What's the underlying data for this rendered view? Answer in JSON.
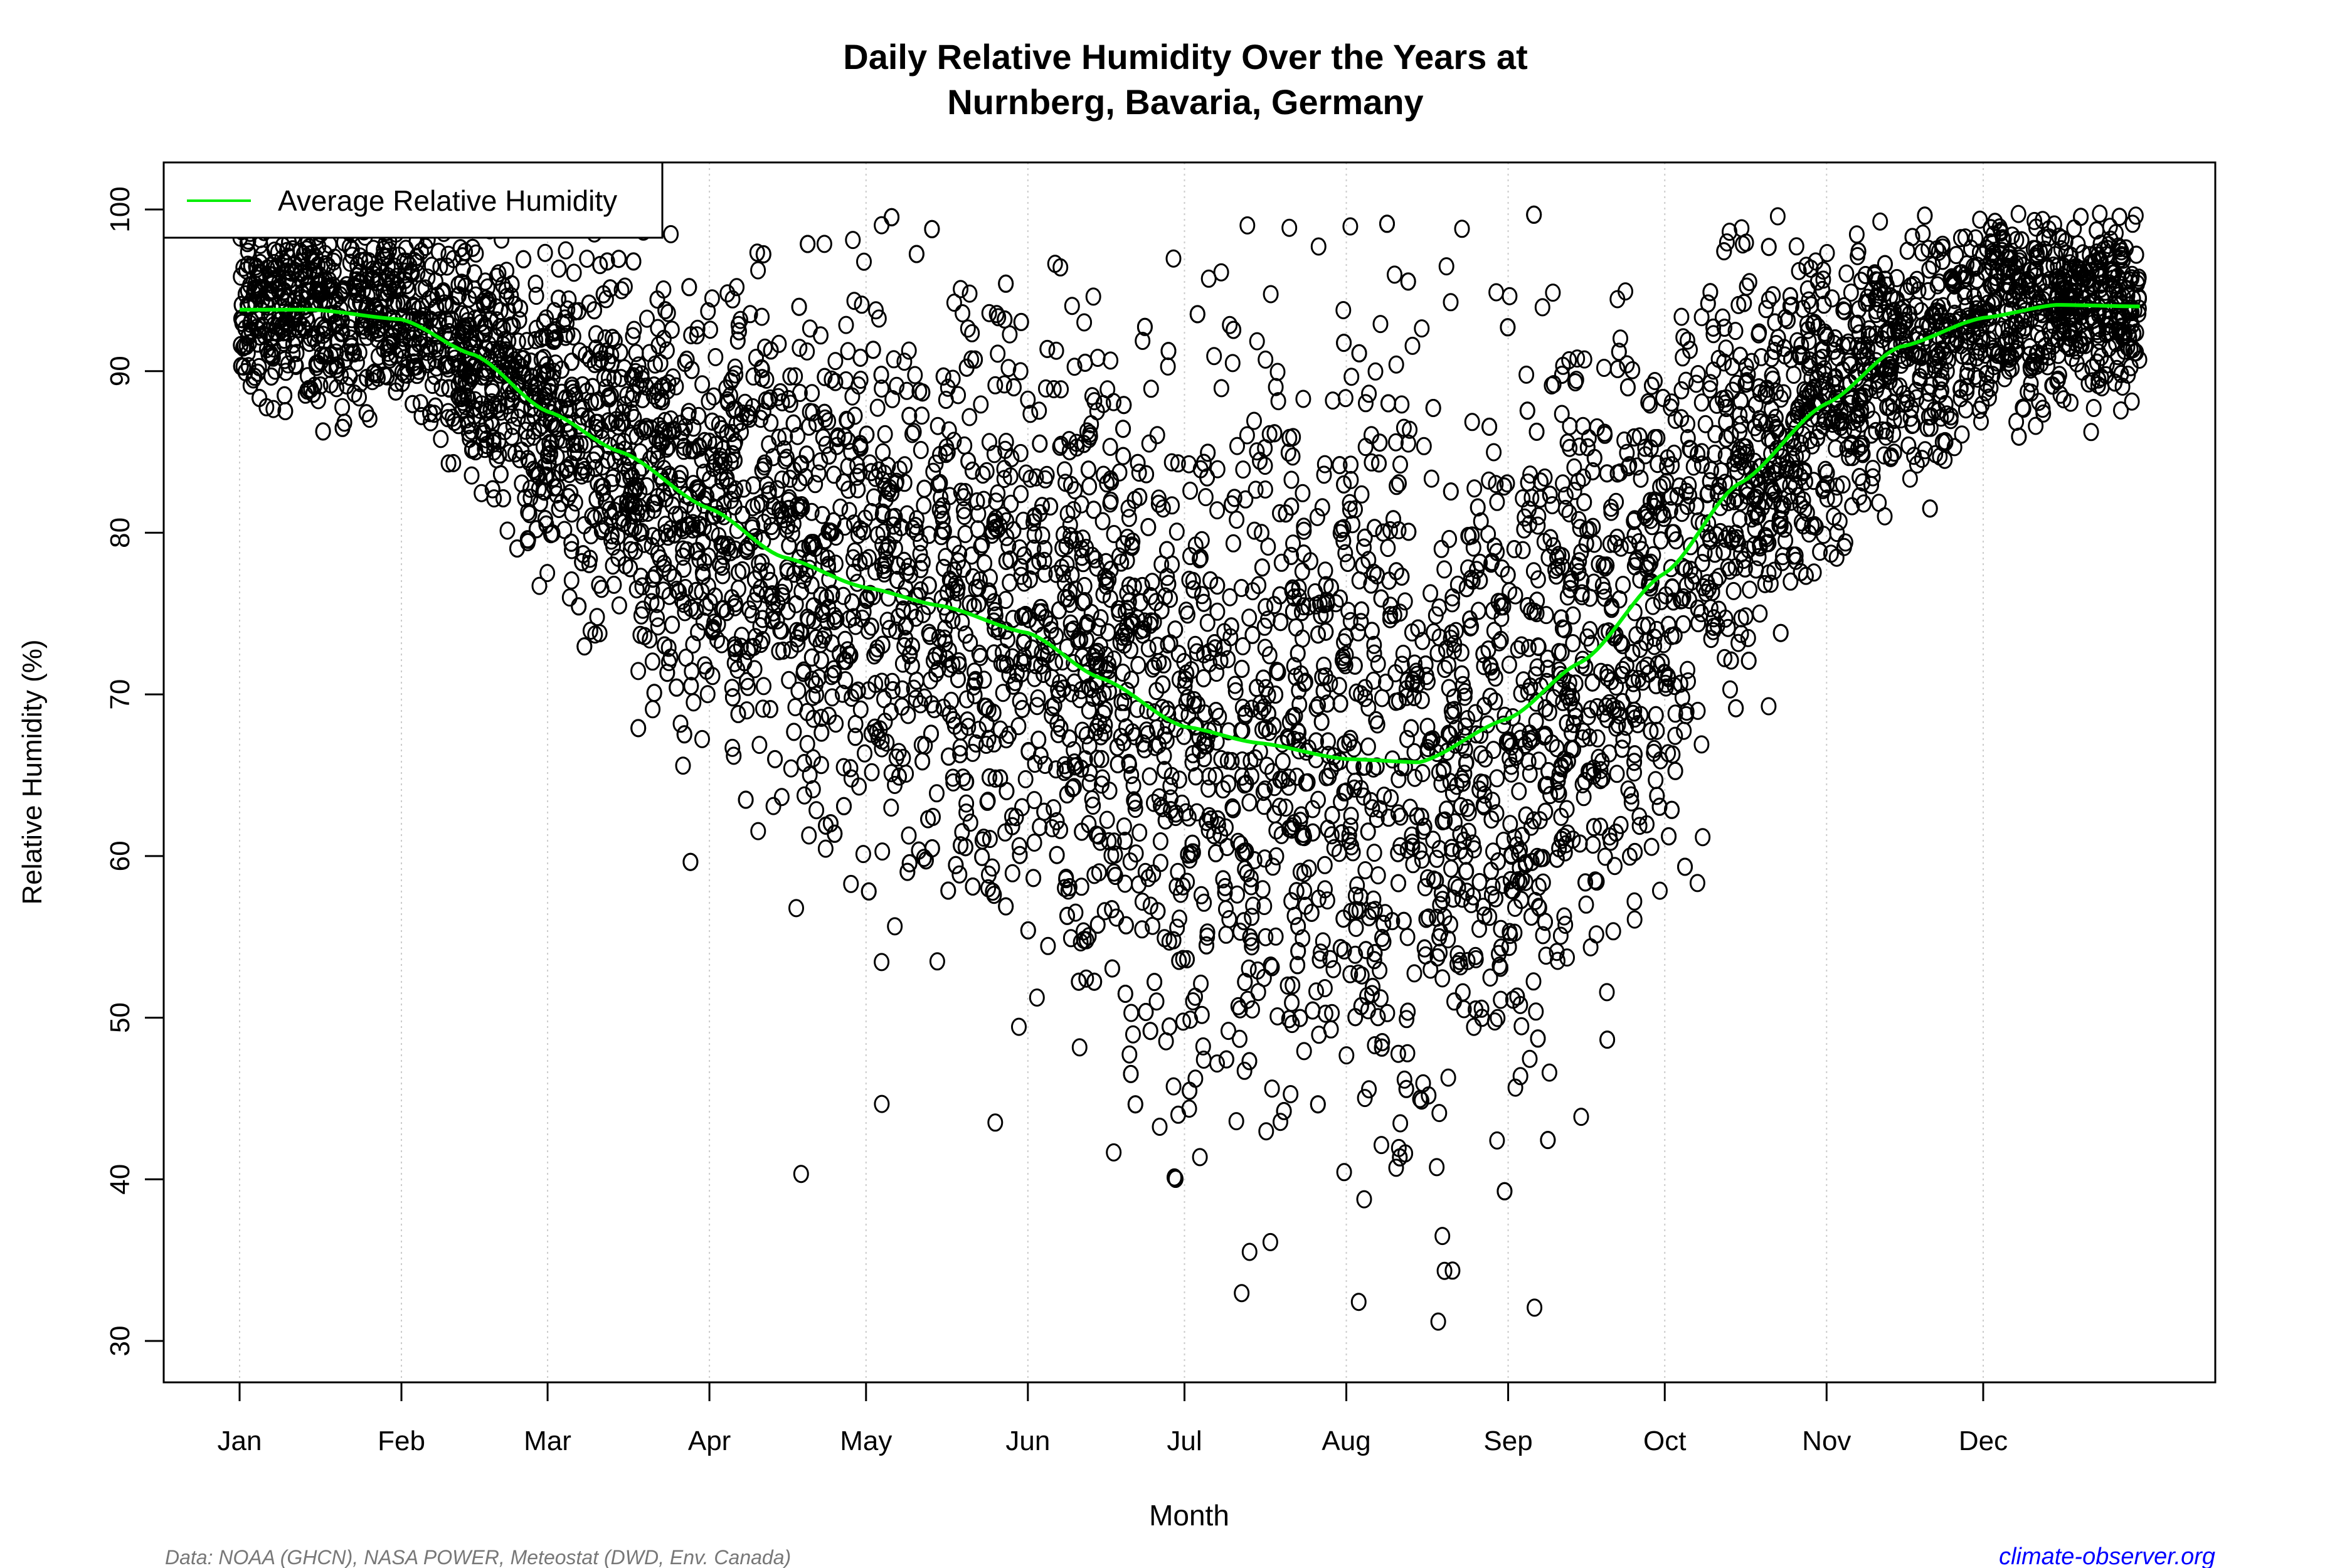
{
  "chart_data": {
    "type": "scatter",
    "title": "Daily Relative Humidity Over the Years at",
    "subtitle": "Nurnberg, Bavaria, Germany",
    "xlabel": "Month",
    "ylabel": "Relative Humidity  (%)",
    "ylim": [
      27,
      103
    ],
    "yticks": [
      30,
      40,
      50,
      60,
      70,
      80,
      90,
      100
    ],
    "xticks": [
      {
        "label": "Jan",
        "day": 1
      },
      {
        "label": "Feb",
        "day": 32
      },
      {
        "label": "Mar",
        "day": 60
      },
      {
        "label": "Apr",
        "day": 91
      },
      {
        "label": "May",
        "day": 121
      },
      {
        "label": "Jun",
        "day": 152
      },
      {
        "label": "Jul",
        "day": 182
      },
      {
        "label": "Aug",
        "day": 213
      },
      {
        "label": "Sep",
        "day": 244
      },
      {
        "label": "Oct",
        "day": 274
      },
      {
        "label": "Nov",
        "day": 305
      },
      {
        "label": "Dec",
        "day": 335
      }
    ],
    "grid": "vertical dotted at month starts",
    "legend": {
      "placement": "top-left",
      "entries": [
        {
          "name": "Average Relative Humidity",
          "color": "#00ee00"
        }
      ]
    },
    "series": [
      {
        "name": "Average Relative Humidity",
        "type": "line",
        "color": "#00ee00",
        "x": [
          1,
          15,
          32,
          46,
          60,
          74,
          91,
          105,
          121,
          135,
          152,
          166,
          182,
          196,
          213,
          227,
          244,
          258,
          274,
          288,
          305,
          319,
          335,
          349,
          365
        ],
        "y": [
          93.8,
          93.8,
          93.2,
          91.0,
          87.5,
          85.0,
          81.5,
          78.5,
          76.6,
          75.5,
          73.8,
          71.0,
          68.0,
          67.0,
          66.0,
          65.8,
          68.5,
          72.0,
          77.5,
          83.0,
          88.0,
          91.5,
          93.3,
          94.1,
          94.0
        ]
      },
      {
        "name": "",
        "type": "scatter",
        "marker": "open circle",
        "color": "#000000",
        "y_range_observed": [
          30,
          100
        ]
      }
    ]
  },
  "footer": {
    "source": "Data: NOAA (GHCN), NASA POWER, Meteostat (DWD, Env. Canada)",
    "site": "climate-observer.org"
  },
  "watermark": "climate-observer.org",
  "colors": {
    "points": "#000000",
    "average": "#00ee00",
    "site_link": "#0000ff",
    "source": "#777777"
  }
}
